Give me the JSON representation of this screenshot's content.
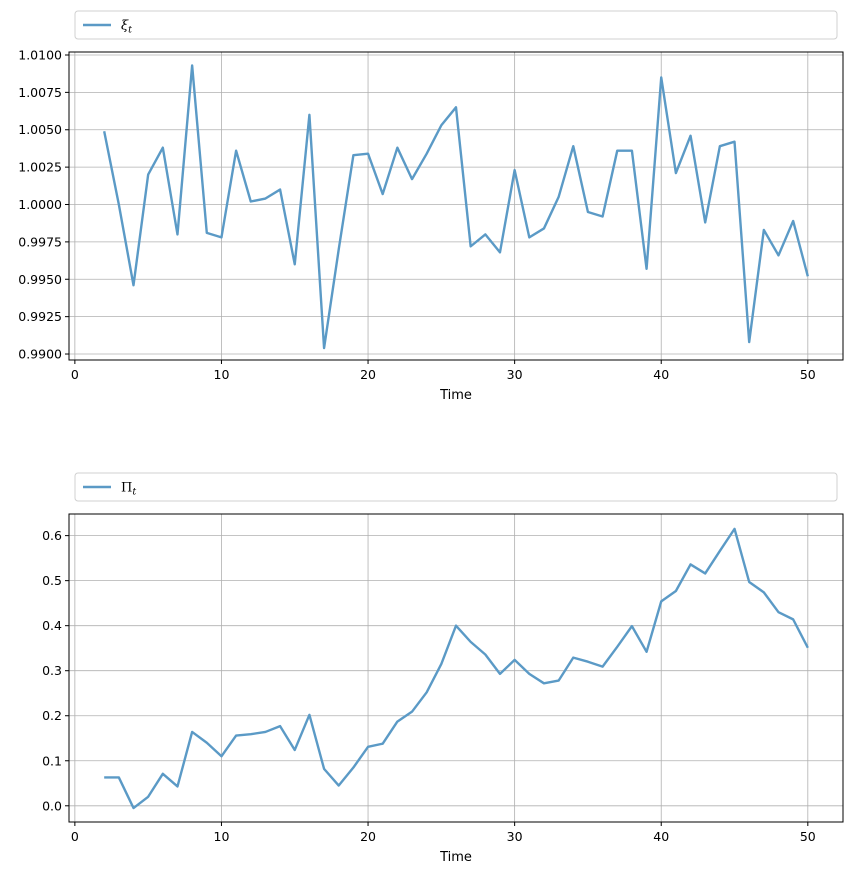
{
  "chart_data": [
    {
      "type": "line",
      "legend": {
        "symbol": "ξ",
        "subscript": "t",
        "placement": "top, above plot"
      },
      "series": [
        {
          "name": "ξ_t",
          "color": "#5b9ac6",
          "x": [
            2,
            3,
            4,
            5,
            6,
            7,
            8,
            9,
            10,
            11,
            12,
            13,
            14,
            15,
            16,
            17,
            18,
            19,
            20,
            21,
            22,
            23,
            24,
            25,
            26,
            27,
            28,
            29,
            30,
            31,
            32,
            33,
            34,
            35,
            36,
            37,
            38,
            39,
            40,
            41,
            42,
            43,
            44,
            45,
            46,
            47,
            48,
            49,
            50
          ],
          "y": [
            1.0049,
            1.0,
            0.9946,
            1.002,
            1.0038,
            0.998,
            1.0093,
            0.9981,
            0.9978,
            1.0036,
            1.0002,
            1.0004,
            1.001,
            0.996,
            1.006,
            0.9904,
            0.997,
            1.0033,
            1.0034,
            1.0007,
            1.0038,
            1.0017,
            1.0034,
            1.0053,
            1.0065,
            0.9972,
            0.998,
            0.9968,
            1.0023,
            0.9978,
            0.9984,
            1.0005,
            1.0039,
            0.9995,
            0.9992,
            1.0036,
            1.0036,
            0.9957,
            1.0085,
            1.0021,
            1.0046,
            0.9988,
            1.0039,
            1.0042,
            0.9908,
            0.9983,
            0.9966,
            0.9989,
            0.9952
          ]
        }
      ],
      "xlabel": "Time",
      "ylabel": "",
      "xlim": [
        -0.4,
        52.4
      ],
      "ylim": [
        0.9896,
        1.0102
      ],
      "xticks": [
        0,
        10,
        20,
        30,
        40,
        50
      ],
      "yticks": [
        0.99,
        0.9925,
        0.995,
        0.9975,
        1.0,
        1.0025,
        1.005,
        1.0075,
        1.01
      ],
      "ytick_labels": [
        "0.9900",
        "0.9925",
        "0.9950",
        "0.9975",
        "1.0000",
        "1.0025",
        "1.0050",
        "1.0075",
        "1.0100"
      ],
      "grid": true
    },
    {
      "type": "line",
      "legend": {
        "symbol": "Π",
        "subscript": "t",
        "placement": "top, above plot"
      },
      "series": [
        {
          "name": "Π_t",
          "color": "#5b9ac6",
          "x": [
            2,
            3,
            4,
            5,
            6,
            7,
            8,
            9,
            10,
            11,
            12,
            13,
            14,
            15,
            16,
            17,
            18,
            19,
            20,
            21,
            22,
            23,
            24,
            25,
            26,
            27,
            28,
            29,
            30,
            31,
            32,
            33,
            34,
            35,
            36,
            37,
            38,
            39,
            40,
            41,
            42,
            43,
            44,
            45,
            46,
            47,
            48,
            49,
            50
          ],
          "y": [
            0.063,
            0.063,
            -0.005,
            0.02,
            0.071,
            0.043,
            0.164,
            0.14,
            0.11,
            0.156,
            0.159,
            0.164,
            0.177,
            0.124,
            0.202,
            0.082,
            0.045,
            0.085,
            0.131,
            0.138,
            0.187,
            0.209,
            0.252,
            0.315,
            0.4,
            0.364,
            0.336,
            0.293,
            0.324,
            0.293,
            0.272,
            0.278,
            0.329,
            0.32,
            0.309,
            0.353,
            0.399,
            0.342,
            0.454,
            0.477,
            0.536,
            0.516,
            0.566,
            0.615,
            0.497,
            0.474,
            0.43,
            0.414,
            0.351
          ]
        }
      ],
      "xlabel": "Time",
      "ylabel": "",
      "xlim": [
        -0.4,
        52.4
      ],
      "ylim": [
        -0.036,
        0.648
      ],
      "xticks": [
        0,
        10,
        20,
        30,
        40,
        50
      ],
      "yticks": [
        0.0,
        0.1,
        0.2,
        0.3,
        0.4,
        0.5,
        0.6
      ],
      "ytick_labels": [
        "0.0",
        "0.1",
        "0.2",
        "0.3",
        "0.4",
        "0.5",
        "0.6"
      ],
      "grid": true
    }
  ]
}
